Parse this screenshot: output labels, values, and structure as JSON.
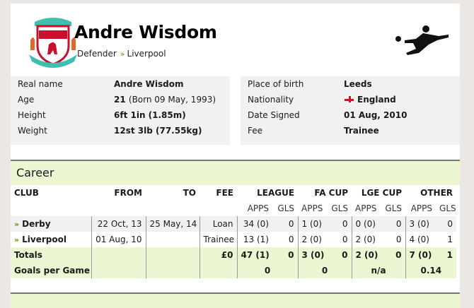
{
  "player": {
    "name": "Andre Wisdom",
    "position": "Defender",
    "club": "Liverpool"
  },
  "colors": {
    "accent_green": "#6e8a1c",
    "section_bg": "#edf6d2",
    "info_bg": "#f1f1f1",
    "crest_red": "#c8102e",
    "crest_teal": "#3fbfad"
  },
  "info_left": [
    {
      "label": "Real name",
      "value": "Andre Wisdom",
      "extra": ""
    },
    {
      "label": "Age",
      "value": "21",
      "extra": "(Born 09 May, 1993)"
    },
    {
      "label": "Height",
      "value": "6ft 1in (1.85m)",
      "extra": ""
    },
    {
      "label": "Weight",
      "value": "12st 3lb (77.55kg)",
      "extra": ""
    }
  ],
  "info_right": [
    {
      "label": "Place of birth",
      "value": "Leeds"
    },
    {
      "label": "Nationality",
      "value": "England",
      "icon": "england-flag-icon"
    },
    {
      "label": "Date Signed",
      "value": "01 Aug, 2010"
    },
    {
      "label": "Fee",
      "value": "Trainee"
    }
  ],
  "career": {
    "title": "Career",
    "headers": [
      "CLUB",
      "FROM",
      "TO",
      "FEE",
      "LEAGUE",
      "FA CUP",
      "LGE CUP",
      "OTHER"
    ],
    "subheaders": [
      "APPS",
      "GLS"
    ],
    "rows": [
      {
        "club": "Derby",
        "from": "22 Oct, 13",
        "to": "25 May, 14",
        "fee": "Loan",
        "stats": [
          "34 (0)",
          "0",
          "1 (0)",
          "0",
          "0 (0)",
          "0",
          "3 (0)",
          "0"
        ]
      },
      {
        "club": "Liverpool",
        "from": "01 Aug, 10",
        "to": "",
        "fee": "Trainee",
        "stats": [
          "13 (1)",
          "0",
          "2 (0)",
          "0",
          "2 (0)",
          "0",
          "4 (0)",
          "1"
        ]
      }
    ],
    "totals": {
      "label": "Totals",
      "fee": "£0",
      "stats": [
        "47 (1)",
        "0",
        "3 (0)",
        "0",
        "2 (0)",
        "0",
        "7 (0)",
        "1"
      ]
    },
    "gpg": {
      "label": "Goals per Game",
      "values": [
        "0",
        "0",
        "n/a",
        "0.14"
      ]
    }
  }
}
